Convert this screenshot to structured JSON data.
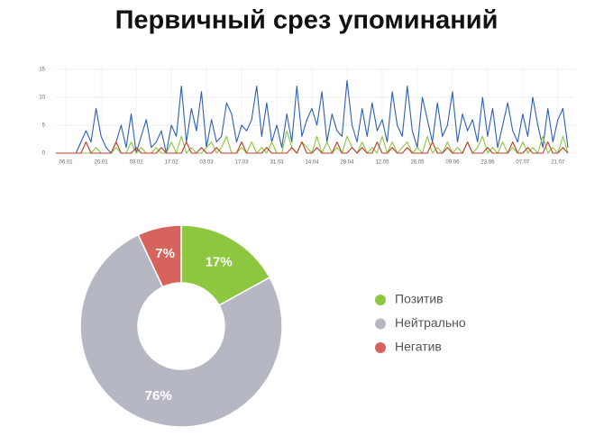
{
  "title": "Первичный срез упоминаний",
  "chart_data": [
    {
      "type": "line",
      "categories": [
        null,
        null,
        "06.01",
        null,
        null,
        null,
        null,
        null,
        null,
        "20.01",
        null,
        null,
        null,
        null,
        null,
        null,
        "03.02",
        null,
        null,
        null,
        null,
        null,
        null,
        "17.02",
        null,
        null,
        null,
        null,
        null,
        null,
        "03.03",
        null,
        null,
        null,
        null,
        null,
        null,
        "17.03",
        null,
        null,
        null,
        null,
        null,
        null,
        "31.03",
        null,
        null,
        null,
        null,
        null,
        null,
        "14.04",
        null,
        null,
        null,
        null,
        null,
        null,
        "28.04",
        null,
        null,
        null,
        null,
        null,
        null,
        "12.05",
        null,
        null,
        null,
        null,
        null,
        null,
        "26.05",
        null,
        null,
        null,
        null,
        null,
        null,
        "09.06",
        null,
        null,
        null,
        null,
        null,
        null,
        "23.06",
        null,
        null,
        null,
        null,
        null,
        null,
        "07.07",
        null,
        null,
        null,
        null,
        null,
        null,
        "21.07",
        null,
        null
      ],
      "series": [
        {
          "color": "#2d5fb5",
          "values": [
            0,
            0,
            0,
            0,
            0,
            2,
            4,
            2,
            8,
            3,
            1,
            0,
            2,
            5,
            1,
            7,
            0,
            3,
            6,
            1,
            2,
            4,
            0,
            5,
            3,
            12,
            2,
            8,
            4,
            11,
            1,
            6,
            2,
            3,
            9,
            7,
            2,
            5,
            4,
            6,
            12,
            3,
            9,
            2,
            5,
            1,
            7,
            2,
            12,
            3,
            6,
            8,
            5,
            11,
            2,
            7,
            4,
            3,
            13,
            5,
            2,
            8,
            3,
            9,
            4,
            6,
            2,
            11,
            5,
            3,
            12,
            4,
            1,
            10,
            6,
            2,
            9,
            3,
            5,
            11,
            2,
            7,
            4,
            6,
            2,
            10,
            3,
            8,
            1,
            5,
            9,
            4,
            2,
            7,
            3,
            10,
            5,
            1,
            8,
            2,
            6,
            8,
            1
          ]
        },
        {
          "color": "#8dc63f",
          "values": [
            0,
            0,
            0,
            0,
            0,
            0,
            0,
            0,
            1,
            0,
            0,
            0,
            1,
            0,
            0,
            2,
            0,
            1,
            0,
            0,
            1,
            0,
            0,
            2,
            0,
            3,
            0,
            1,
            0,
            0,
            1,
            2,
            0,
            1,
            3,
            0,
            0,
            1,
            0,
            2,
            0,
            1,
            0,
            2,
            0,
            0,
            4,
            1,
            0,
            2,
            1,
            0,
            3,
            0,
            2,
            0,
            1,
            0,
            3,
            1,
            0,
            2,
            0,
            1,
            0,
            3,
            0,
            2,
            0,
            1,
            2,
            0,
            1,
            0,
            3,
            0,
            1,
            0,
            2,
            0,
            1,
            0,
            2,
            0,
            1,
            3,
            0,
            1,
            0,
            2,
            0,
            1,
            0,
            2,
            0,
            1,
            0,
            3,
            0,
            1,
            0,
            3,
            0
          ]
        },
        {
          "color": "#c0392b",
          "values": [
            0,
            0,
            0,
            0,
            0,
            0,
            2,
            0,
            0,
            0,
            0,
            0,
            2,
            0,
            0,
            0,
            1,
            0,
            0,
            0,
            0,
            1,
            0,
            0,
            0,
            0,
            2,
            0,
            0,
            1,
            0,
            0,
            1,
            0,
            0,
            0,
            0,
            2,
            0,
            0,
            0,
            0,
            1,
            0,
            0,
            0,
            0,
            1,
            0,
            2,
            0,
            0,
            1,
            0,
            0,
            0,
            2,
            0,
            0,
            1,
            0,
            1,
            0,
            0,
            2,
            0,
            0,
            1,
            0,
            0,
            1,
            0,
            0,
            0,
            0,
            2,
            0,
            0,
            1,
            0,
            0,
            0,
            2,
            0,
            0,
            0,
            1,
            0,
            0,
            0,
            0,
            2,
            0,
            0,
            1,
            0,
            0,
            0,
            2,
            0,
            0,
            1,
            0
          ]
        }
      ],
      "ylim": [
        0,
        15
      ],
      "yticks": [
        0,
        5,
        10,
        15
      ],
      "grid": true
    },
    {
      "type": "donut",
      "categories": [
        "Позитив",
        "Нейтрально",
        "Негатив"
      ],
      "values": [
        17,
        76,
        7
      ],
      "value_labels": [
        "17%",
        "76%",
        "7%"
      ],
      "colors": [
        "#8dc63f",
        "#b5b8c3",
        "#d6645c"
      ],
      "legend": "right"
    }
  ]
}
